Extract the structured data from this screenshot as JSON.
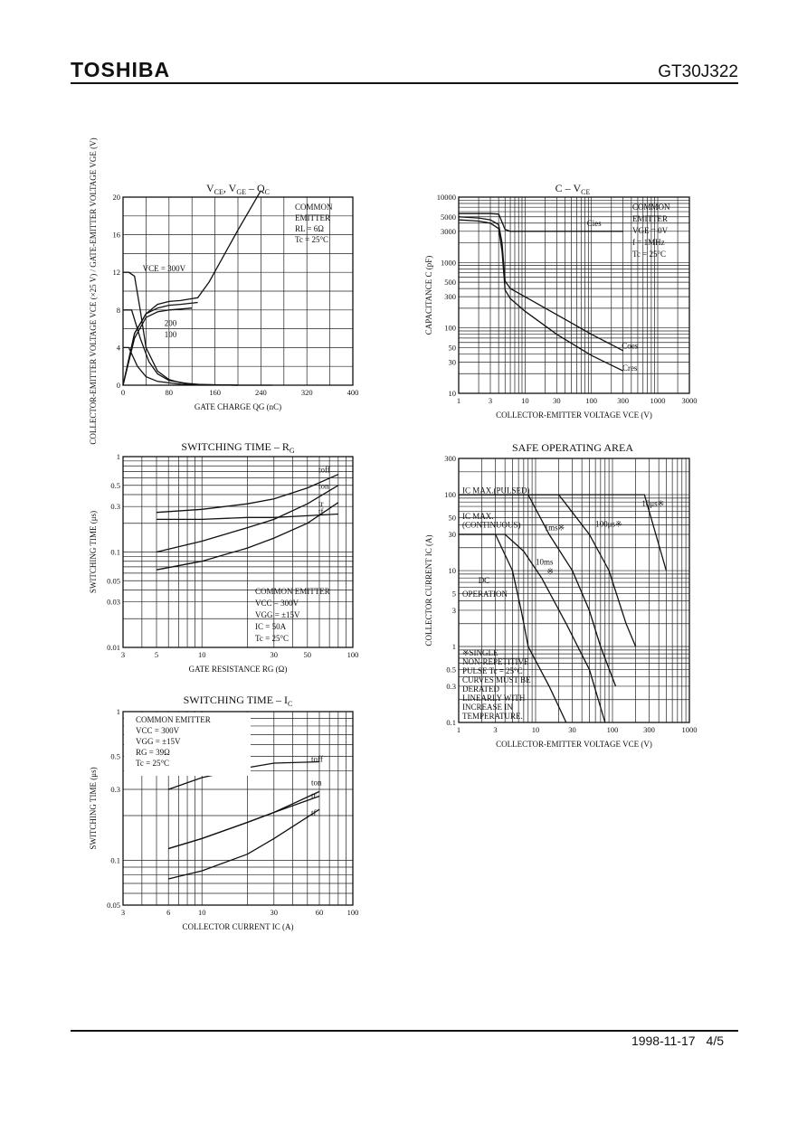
{
  "header": {
    "brand": "TOSHIBA",
    "part_number": "GT30J322"
  },
  "footer": {
    "date": "1998-11-17",
    "page": "4/5"
  },
  "chart_data": [
    {
      "id": "gate_charge",
      "type": "line",
      "title": "VCE, VGE – QC",
      "xlabel": "GATE CHARGE QG (nC)",
      "ylabel": "COLLECTOR-EMITTER VOLTAGE VCE (×25 V) / GATE-EMITTER VOLTAGE VGE (V)",
      "xlim": [
        0,
        400
      ],
      "ylim": [
        0,
        20
      ],
      "xticks": [
        "0",
        "80",
        "160",
        "240",
        "320",
        "400"
      ],
      "yticks": [
        "0",
        "4",
        "8",
        "12",
        "16",
        "20"
      ],
      "conditions": [
        "COMMON",
        "EMITTER",
        "RL = 6Ω",
        "Tc = 25°C"
      ],
      "annotations": [
        "VCE = 300V",
        "200",
        "100"
      ],
      "series": [
        {
          "name": "VGE @300",
          "x": [
            0,
            20,
            40,
            60,
            80,
            100,
            130,
            150,
            200,
            240
          ],
          "y": [
            0,
            5.5,
            7.6,
            8.6,
            8.9,
            9.0,
            9.3,
            11,
            16.5,
            20.7
          ]
        },
        {
          "name": "VGE @200",
          "x": [
            0,
            20,
            40,
            60,
            80,
            100,
            130
          ],
          "y": [
            0,
            5.5,
            7.6,
            8.2,
            8.5,
            8.6,
            8.8
          ]
        },
        {
          "name": "VGE @100",
          "x": [
            0,
            20,
            40,
            60,
            80,
            100,
            120
          ],
          "y": [
            0,
            5.0,
            7.2,
            7.8,
            8.0,
            8.1,
            8.2
          ]
        },
        {
          "name": "VCE 300V",
          "x": [
            0,
            10,
            20,
            30,
            40,
            60,
            80,
            100,
            140,
            200,
            260
          ],
          "y": [
            12,
            12,
            11.6,
            8,
            4,
            1.5,
            0.6,
            0.25,
            0.05,
            0,
            0
          ]
        },
        {
          "name": "VCE 200V",
          "x": [
            0,
            15,
            30,
            45,
            60,
            80,
            120,
            200
          ],
          "y": [
            8,
            8,
            5,
            2.5,
            1.2,
            0.5,
            0.1,
            0
          ]
        },
        {
          "name": "VCE 100V",
          "x": [
            0,
            10,
            25,
            40,
            60,
            100,
            200
          ],
          "y": [
            4,
            4,
            2,
            0.9,
            0.4,
            0.1,
            0
          ]
        }
      ]
    },
    {
      "id": "capacitance",
      "type": "line",
      "title": "C – VCE",
      "xlabel": "COLLECTOR-EMITTER VOLTAGE VCE (V)",
      "ylabel": "CAPACITANCE C (pF)",
      "xscale": "log",
      "yscale": "log",
      "xlim": [
        1,
        3000
      ],
      "ylim": [
        10,
        10000
      ],
      "xticks": [
        "1",
        "3",
        "10",
        "30",
        "100",
        "300",
        "1000",
        "3000"
      ],
      "yticks": [
        "10",
        "30",
        "50",
        "100",
        "300",
        "500",
        "1000",
        "3000",
        "5000",
        "10000"
      ],
      "conditions": [
        "COMMON",
        "EMITTER",
        "VGE = 0V",
        "f = 1MHz",
        "Tc = 25°C"
      ],
      "series": [
        {
          "name": "Cies",
          "x": [
            1,
            2,
            3,
            4,
            5,
            6,
            10,
            100,
            300
          ],
          "y": [
            5600,
            5600,
            5600,
            5500,
            3200,
            3000,
            3000,
            3000,
            3000
          ]
        },
        {
          "name": "Coes",
          "x": [
            1,
            2,
            3,
            4,
            4.5,
            5,
            6,
            10,
            30,
            100,
            300
          ],
          "y": [
            5000,
            4800,
            4500,
            3800,
            2000,
            520,
            400,
            300,
            160,
            80,
            45
          ]
        },
        {
          "name": "Cres",
          "x": [
            1,
            2,
            3,
            4,
            4.5,
            5,
            6,
            10,
            30,
            100,
            300
          ],
          "y": [
            4500,
            4300,
            4000,
            3300,
            1500,
            380,
            280,
            180,
            80,
            38,
            22
          ]
        }
      ]
    },
    {
      "id": "sw_rg",
      "type": "line",
      "title": "SWITCHING TIME – RG",
      "xlabel": "GATE RESISTANCE RG (Ω)",
      "ylabel": "SWITCHING TIME (μs)",
      "xscale": "log",
      "yscale": "log",
      "xlim": [
        3,
        100
      ],
      "ylim": [
        0.01,
        1
      ],
      "xticks": [
        "3",
        "5",
        "10",
        "30",
        "50",
        "100"
      ],
      "yticks": [
        "0.01",
        "0.03",
        "0.05",
        "0.1",
        "0.3",
        "0.5",
        "1"
      ],
      "conditions": [
        "COMMON EMITTER",
        "VCC = 300V",
        "VGG = ±15V",
        "IC = 50A",
        "Tc = 25°C"
      ],
      "series": [
        {
          "name": "toff",
          "x": [
            5,
            10,
            20,
            30,
            50,
            80
          ],
          "y": [
            0.26,
            0.28,
            0.32,
            0.36,
            0.47,
            0.65
          ]
        },
        {
          "name": "ton",
          "x": [
            5,
            10,
            20,
            30,
            50,
            80
          ],
          "y": [
            0.1,
            0.13,
            0.18,
            0.22,
            0.32,
            0.5
          ]
        },
        {
          "name": "tr",
          "x": [
            5,
            10,
            20,
            30,
            50,
            80
          ],
          "y": [
            0.065,
            0.08,
            0.11,
            0.14,
            0.2,
            0.33
          ]
        },
        {
          "name": "tf",
          "x": [
            5,
            10,
            20,
            30,
            50,
            80
          ],
          "y": [
            0.22,
            0.22,
            0.23,
            0.23,
            0.24,
            0.25
          ]
        }
      ]
    },
    {
      "id": "soa",
      "type": "line",
      "title": "SAFE OPERATING AREA",
      "xlabel": "COLLECTOR-EMITTER VOLTAGE VCE (V)",
      "ylabel": "COLLECTOR CURRENT IC (A)",
      "xscale": "log",
      "yscale": "log",
      "xlim": [
        1,
        1000
      ],
      "ylim": [
        0.1,
        300
      ],
      "xticks": [
        "1",
        "3",
        "10",
        "30",
        "100",
        "300",
        "1000"
      ],
      "yticks": [
        "0.1",
        "0.3",
        "0.5",
        "1",
        "3",
        "5",
        "10",
        "30",
        "50",
        "100",
        "300"
      ],
      "labels": [
        "IC MAX.(PULSED)",
        "IC MAX.",
        "(CONTINUOUS)",
        "1ms※",
        "100μs※",
        "10μs※",
        "10ms",
        "※",
        "DC",
        "OPERATION"
      ],
      "note": [
        "※SINGLE",
        "NON-REPETITIVE",
        "PULSE  Tc = 25°C",
        "CURVES MUST BE",
        "DERATED",
        "LINEARLY WITH",
        "INCREASE IN",
        "TEMPERATURE."
      ],
      "series": [
        {
          "name": "DC",
          "x": [
            1,
            3,
            5,
            6.5,
            8,
            15,
            25
          ],
          "y": [
            30,
            30,
            10,
            3,
            1,
            0.3,
            0.1
          ]
        },
        {
          "name": "10ms",
          "x": [
            1,
            4,
            7,
            12,
            25,
            50,
            80
          ],
          "y": [
            30,
            30,
            18,
            8,
            2,
            0.5,
            0.1
          ]
        },
        {
          "name": "1ms",
          "x": [
            1,
            8,
            15,
            30,
            50,
            70,
            110
          ],
          "y": [
            100,
            100,
            30,
            10,
            3,
            1,
            0.3
          ]
        },
        {
          "name": "100us",
          "x": [
            1,
            20,
            50,
            90,
            150,
            200
          ],
          "y": [
            100,
            100,
            30,
            10,
            2,
            1
          ]
        },
        {
          "name": "10us",
          "x": [
            1,
            260,
            500
          ],
          "y": [
            100,
            100,
            10
          ]
        }
      ]
    },
    {
      "id": "sw_ic",
      "type": "line",
      "title": "SWITCHING TIME – IC",
      "xlabel": "COLLECTOR CURRENT IC (A)",
      "ylabel": "SWITCHING TIME (μs)",
      "xscale": "log",
      "yscale": "log",
      "xlim": [
        3,
        100
      ],
      "ylim": [
        0.05,
        1
      ],
      "xticks": [
        "3",
        "6",
        "10",
        "30",
        "60",
        "100"
      ],
      "yticks": [
        "0.05",
        "0.1",
        "0.3",
        "0.5",
        "1"
      ],
      "conditions": [
        "COMMON EMITTER",
        "VCC = 300V",
        "VGG = ±15V",
        "RG = 39Ω",
        "Tc = 25°C"
      ],
      "series": [
        {
          "name": "toff",
          "x": [
            6,
            10,
            20,
            30,
            60
          ],
          "y": [
            0.3,
            0.36,
            0.42,
            0.45,
            0.46
          ]
        },
        {
          "name": "ton",
          "x": [
            6,
            10,
            20,
            30,
            60
          ],
          "y": [
            0.12,
            0.14,
            0.18,
            0.21,
            0.29
          ]
        },
        {
          "name": "tr",
          "x": [
            6,
            10,
            20,
            30,
            60
          ],
          "y": [
            0.12,
            0.14,
            0.18,
            0.21,
            0.27
          ]
        },
        {
          "name": "tf",
          "x": [
            6,
            10,
            20,
            30,
            60
          ],
          "y": [
            0.075,
            0.085,
            0.11,
            0.14,
            0.22
          ]
        }
      ]
    }
  ]
}
